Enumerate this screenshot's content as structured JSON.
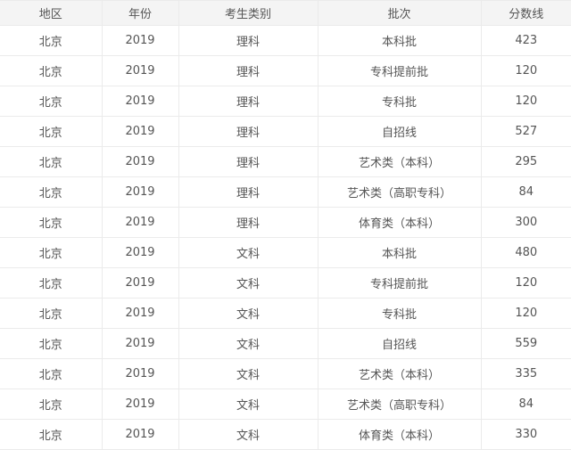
{
  "headers": [
    "地区",
    "年份",
    "考生类别",
    "批次",
    "分数线"
  ],
  "rows": [
    [
      "北京",
      "2019",
      "理科",
      "本科批",
      "423"
    ],
    [
      "北京",
      "2019",
      "理科",
      "专科提前批",
      "120"
    ],
    [
      "北京",
      "2019",
      "理科",
      "专科批",
      "120"
    ],
    [
      "北京",
      "2019",
      "理科",
      "自招线",
      "527"
    ],
    [
      "北京",
      "2019",
      "理科",
      "艺术类（本科）",
      "295"
    ],
    [
      "北京",
      "2019",
      "理科",
      "艺术类（高职专科）",
      "84"
    ],
    [
      "北京",
      "2019",
      "理科",
      "体育类（本科）",
      "300"
    ],
    [
      "北京",
      "2019",
      "文科",
      "本科批",
      "480"
    ],
    [
      "北京",
      "2019",
      "文科",
      "专科提前批",
      "120"
    ],
    [
      "北京",
      "2019",
      "文科",
      "专科批",
      "120"
    ],
    [
      "北京",
      "2019",
      "文科",
      "自招线",
      "559"
    ],
    [
      "北京",
      "2019",
      "文科",
      "艺术类（本科）",
      "335"
    ],
    [
      "北京",
      "2019",
      "文科",
      "艺术类（高职专科）",
      "84"
    ],
    [
      "北京",
      "2019",
      "文科",
      "体育类（本科）",
      "330"
    ]
  ]
}
